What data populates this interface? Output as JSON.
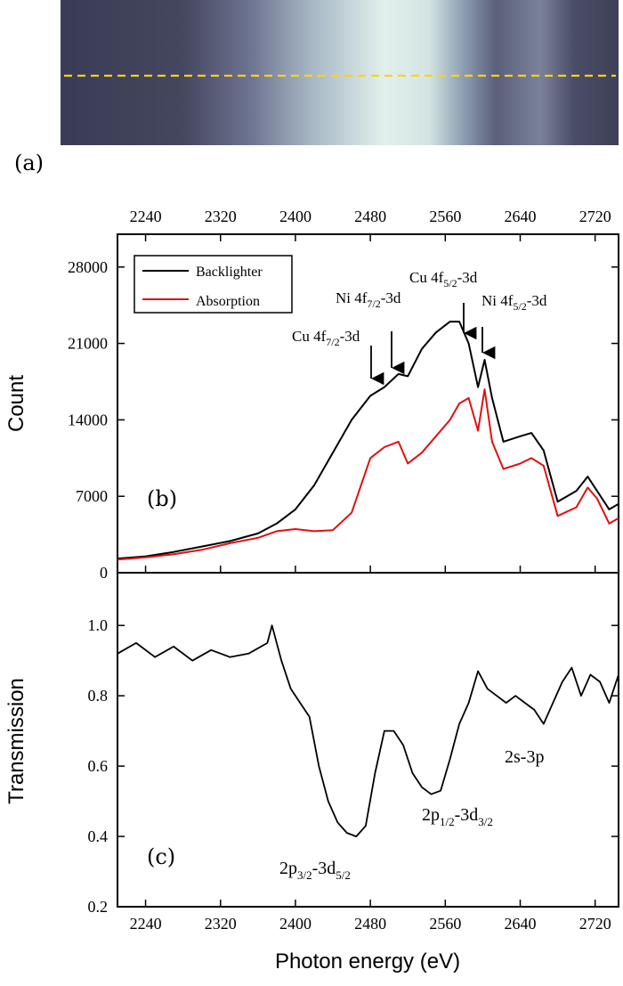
{
  "panels": {
    "a_label": "(a)",
    "b_label": "(b)",
    "c_label": "(c)"
  },
  "colors": {
    "backlighter": "#000000",
    "absorption": "#e01010",
    "lineout_dash": "#ffd21a",
    "image_dark": "#3b3d58",
    "image_bright": "#dceeea"
  },
  "chart_data": [
    {
      "type": "line",
      "panel": "(b)",
      "ylabel": "Count",
      "xlim": [
        2210,
        2745
      ],
      "ylim": [
        0,
        31000
      ],
      "x_ticks": [
        "2240",
        "2320",
        "2400",
        "2480",
        "2560",
        "2640",
        "2720"
      ],
      "y_ticks": [
        "0",
        "7000",
        "14000",
        "21000",
        "28000"
      ],
      "legend": {
        "placement": "top-left",
        "entries": [
          "Backlighter",
          "Absorption"
        ]
      },
      "series": [
        {
          "name": "Backlighter",
          "x": [
            2210,
            2240,
            2270,
            2300,
            2330,
            2360,
            2380,
            2400,
            2420,
            2440,
            2460,
            2480,
            2495,
            2510,
            2520,
            2535,
            2550,
            2565,
            2575,
            2585,
            2595,
            2602,
            2610,
            2622,
            2640,
            2652,
            2665,
            2680,
            2700,
            2712,
            2722,
            2735,
            2745
          ],
          "values": [
            1300,
            1500,
            1900,
            2400,
            2900,
            3600,
            4500,
            5800,
            8000,
            11000,
            14000,
            16200,
            17000,
            18200,
            18000,
            20500,
            22000,
            23000,
            23000,
            21000,
            17000,
            19500,
            16000,
            12000,
            12500,
            12800,
            11200,
            6500,
            7500,
            8800,
            7500,
            5800,
            6300
          ]
        },
        {
          "name": "Absorption",
          "x": [
            2210,
            2240,
            2270,
            2300,
            2330,
            2360,
            2380,
            2400,
            2420,
            2440,
            2460,
            2480,
            2495,
            2510,
            2520,
            2535,
            2550,
            2565,
            2575,
            2585,
            2595,
            2602,
            2610,
            2622,
            2640,
            2652,
            2665,
            2680,
            2700,
            2712,
            2722,
            2735,
            2745
          ],
          "values": [
            1200,
            1400,
            1700,
            2100,
            2700,
            3200,
            3800,
            4000,
            3800,
            3900,
            5500,
            10500,
            11500,
            12000,
            10000,
            11000,
            12500,
            14000,
            15500,
            16000,
            13000,
            16800,
            12000,
            9500,
            10000,
            10500,
            9800,
            5200,
            6000,
            7800,
            6800,
            4500,
            5000
          ]
        }
      ],
      "annotations": [
        {
          "text": "Cu 4f",
          "sub": "7/2",
          "suffix": "-3d",
          "x": 2490
        },
        {
          "text": "Ni 4f",
          "sub": "7/2",
          "suffix": "-3d",
          "x": 2512
        },
        {
          "text": "Cu 4f",
          "sub": "5/2",
          "suffix": "-3d",
          "x": 2584
        },
        {
          "text": "Ni 4f",
          "sub": "5/2",
          "suffix": "-3d",
          "x": 2601
        }
      ]
    },
    {
      "type": "line",
      "panel": "(c)",
      "xlabel": "Photon energy (eV)",
      "ylabel": "Transmission",
      "xlim": [
        2210,
        2745
      ],
      "ylim": [
        0.2,
        1.15
      ],
      "x_ticks": [
        "2240",
        "2320",
        "2400",
        "2480",
        "2560",
        "2640",
        "2720"
      ],
      "y_ticks": [
        "0.2",
        "0.4",
        "0.6",
        "0.8",
        "1.0"
      ],
      "series": [
        {
          "name": "Transmission",
          "x": [
            2210,
            2230,
            2250,
            2270,
            2290,
            2310,
            2330,
            2350,
            2370,
            2375,
            2385,
            2395,
            2405,
            2415,
            2425,
            2435,
            2445,
            2455,
            2465,
            2475,
            2485,
            2495,
            2505,
            2515,
            2525,
            2535,
            2545,
            2555,
            2565,
            2575,
            2585,
            2595,
            2605,
            2615,
            2625,
            2635,
            2645,
            2655,
            2665,
            2675,
            2685,
            2695,
            2705,
            2715,
            2725,
            2735,
            2745
          ],
          "values": [
            0.92,
            0.95,
            0.91,
            0.94,
            0.9,
            0.93,
            0.91,
            0.92,
            0.95,
            1.0,
            0.9,
            0.82,
            0.78,
            0.74,
            0.6,
            0.5,
            0.44,
            0.41,
            0.4,
            0.43,
            0.58,
            0.7,
            0.7,
            0.66,
            0.58,
            0.54,
            0.52,
            0.53,
            0.62,
            0.72,
            0.78,
            0.87,
            0.82,
            0.8,
            0.78,
            0.8,
            0.78,
            0.76,
            0.72,
            0.78,
            0.84,
            0.88,
            0.8,
            0.86,
            0.84,
            0.78,
            0.86
          ]
        }
      ],
      "annotations": [
        {
          "parts": [
            "2p",
            "3/2",
            "-3d",
            "5/2"
          ]
        },
        {
          "parts": [
            "2p",
            "1/2",
            "-3d",
            "3/2"
          ]
        },
        {
          "text": "2s-3p"
        }
      ]
    }
  ]
}
